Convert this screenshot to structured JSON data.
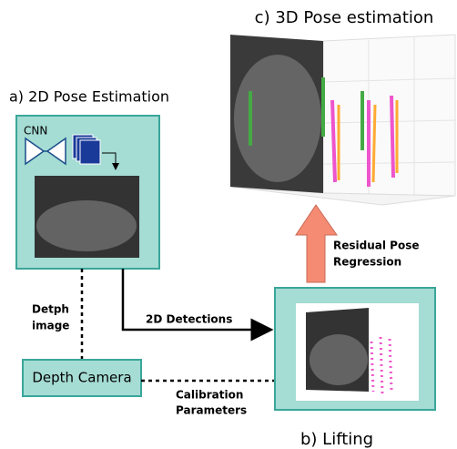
{
  "panels": {
    "a": {
      "label": "a) 2D Pose Estimation",
      "cnn": "CNN"
    },
    "b": {
      "label": "b) Lifting"
    },
    "c": {
      "label": "c) 3D Pose estimation"
    }
  },
  "nodes": {
    "camera": "Depth Camera"
  },
  "edges": {
    "depth_image": [
      "Detph",
      "image"
    ],
    "detections": "2D Detections",
    "calibration": [
      "Calibration",
      "Parameters"
    ],
    "regression": [
      "Residual Pose",
      "Regression"
    ]
  }
}
